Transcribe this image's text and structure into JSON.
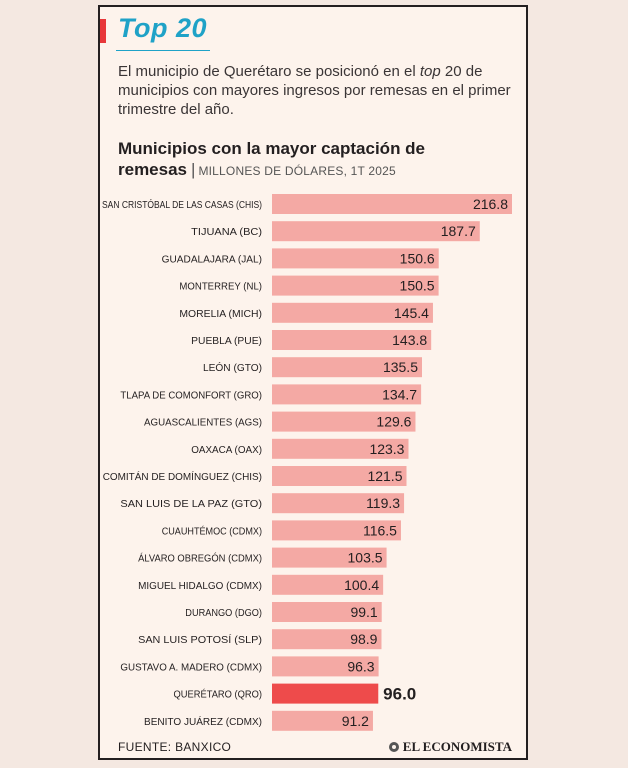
{
  "header": {
    "badge": "Top 20",
    "intro_pre": "El municipio de Querétaro se posicionó en el ",
    "intro_em": "top",
    "intro_post": " 20 de municipios con mayores ingresos por remesas en el primer trimestre del año."
  },
  "chart_title": "Municipios con la mayor captación de remesas",
  "chart_subtitle": "MILLONES DE DÓLARES, 1T 2025",
  "footer": {
    "source": "FUENTE: BANXICO",
    "logo": "EL ECONOMISTA"
  },
  "colors": {
    "bar": "#f4a9a4",
    "highlight": "#ee4b4b",
    "accent": "#e8373a",
    "title": "#1fa2c7"
  },
  "chart_data": {
    "type": "bar",
    "orientation": "horizontal",
    "title": "Municipios con la mayor captación de remesas",
    "subtitle": "MILLONES DE DÓLARES, 1T 2025",
    "categories": [
      "SAN CRISTÓBAL DE LAS CASAS (CHIS)",
      "TIJUANA (BC)",
      "GUADALAJARA (JAL)",
      "MONTERREY (NL)",
      "MORELIA (MICH)",
      "PUEBLA (PUE)",
      "LEÓN (GTO)",
      "TLAPA DE COMONFORT (GRO)",
      "AGUASCALIENTES (AGS)",
      "OAXACA (OAX)",
      "COMITÁN DE DOMÍNGUEZ (CHIS)",
      "SAN LUIS DE LA PAZ (GTO)",
      "CUAUHTÉMOC (CDMX)",
      "ÁLVARO OBREGÓN (CDMX)",
      "MIGUEL HIDALGO (CDMX)",
      "DURANGO (DGO)",
      "SAN LUIS POTOSÍ (SLP)",
      "GUSTAVO A. MADERO (CDMX)",
      "QUERÉTARO (QRO)",
      "BENITO JUÁREZ (CDMX)"
    ],
    "values": [
      216.8,
      187.7,
      150.6,
      150.5,
      145.4,
      143.8,
      135.5,
      134.7,
      129.6,
      123.3,
      121.5,
      119.3,
      116.5,
      103.5,
      100.4,
      99.1,
      98.9,
      96.3,
      96.0,
      91.2
    ],
    "value_labels": [
      "216.8",
      "187.7",
      "150.6",
      "150.5",
      "145.4",
      "143.8",
      "135.5",
      "134.7",
      "129.6",
      "123.3",
      "121.5",
      "119.3",
      "116.5",
      "103.5",
      "100.4",
      "99.1",
      "98.9",
      "96.3",
      "96.0",
      "91.2"
    ],
    "highlight": "QUERÉTARO (QRO)",
    "xlim": [
      0,
      216.8
    ],
    "grid": false,
    "legend": "none"
  }
}
